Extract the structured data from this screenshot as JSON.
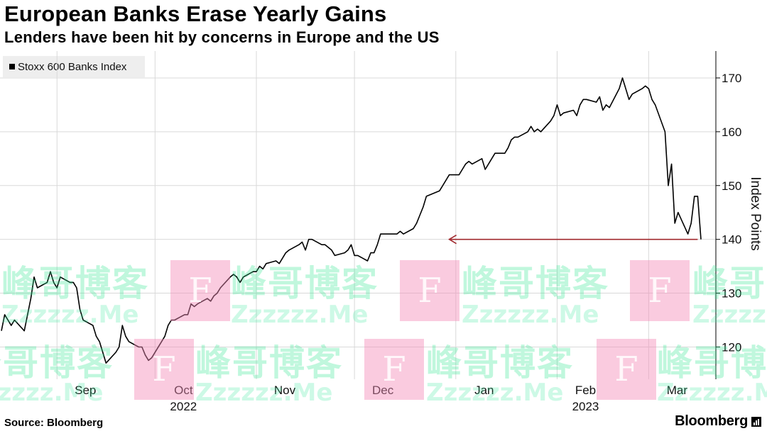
{
  "header": {
    "title": "European Banks Erase Yearly Gains",
    "subtitle": "Lenders have been hit by concerns in Europe and the US"
  },
  "legend": {
    "label": "Stoxx 600 Banks Index"
  },
  "footer": {
    "source": "Source: Bloomberg",
    "brand": "Bloomberg"
  },
  "watermark": {
    "cn": "峰哥博客",
    "en": "Zzzzzz.Me",
    "f": "F"
  },
  "colors": {
    "line": "#000000",
    "arrow": "#a0282d",
    "grid": "#d9d9d9"
  },
  "chart_data": {
    "type": "line",
    "title": "European Banks Erase Yearly Gains",
    "subtitle": "Lenders have been hit by concerns in Europe and the US",
    "ylabel": "Index Points",
    "ylim": [
      114,
      175
    ],
    "yticks": [
      120,
      130,
      140,
      150,
      160,
      170
    ],
    "xlabels": [
      {
        "label": "Sep",
        "date": "2022-09-01"
      },
      {
        "label": "Oct",
        "date": "2022-10-01",
        "year": "2022"
      },
      {
        "label": "Nov",
        "date": "2022-11-01"
      },
      {
        "label": "Dec",
        "date": "2022-12-01"
      },
      {
        "label": "Jan",
        "date": "2023-01-01"
      },
      {
        "label": "Feb",
        "date": "2023-02-01",
        "year": "2023"
      },
      {
        "label": "Mar",
        "date": "2023-03-01"
      }
    ],
    "grid": true,
    "legend_position": "top-left",
    "annotation": {
      "type": "arrow",
      "from_date": "2023-03-16",
      "to_date": "2022-12-30",
      "value": 140,
      "meaning": "back to start-of-year level"
    },
    "series": [
      {
        "name": "Stoxx 600 Banks Index",
        "points": [
          [
            "2022-08-15",
            123
          ],
          [
            "2022-08-16",
            126
          ],
          [
            "2022-08-17",
            125
          ],
          [
            "2022-08-18",
            124
          ],
          [
            "2022-08-19",
            125
          ],
          [
            "2022-08-22",
            123
          ],
          [
            "2022-08-23",
            126
          ],
          [
            "2022-08-24",
            129
          ],
          [
            "2022-08-25",
            133
          ],
          [
            "2022-08-26",
            131
          ],
          [
            "2022-08-29",
            132
          ],
          [
            "2022-08-30",
            134
          ],
          [
            "2022-08-31",
            132
          ],
          [
            "2022-09-01",
            131
          ],
          [
            "2022-09-02",
            133
          ],
          [
            "2022-09-05",
            132
          ],
          [
            "2022-09-06",
            132
          ],
          [
            "2022-09-07",
            131
          ],
          [
            "2022-09-08",
            127
          ],
          [
            "2022-09-09",
            125
          ],
          [
            "2022-09-12",
            124
          ],
          [
            "2022-09-13",
            122
          ],
          [
            "2022-09-14",
            121
          ],
          [
            "2022-09-15",
            119
          ],
          [
            "2022-09-16",
            117
          ],
          [
            "2022-09-19",
            119
          ],
          [
            "2022-09-20",
            120
          ],
          [
            "2022-09-21",
            124
          ],
          [
            "2022-09-22",
            122
          ],
          [
            "2022-09-23",
            121
          ],
          [
            "2022-09-26",
            120
          ],
          [
            "2022-09-27",
            120
          ],
          [
            "2022-09-28",
            118.5
          ],
          [
            "2022-09-29",
            117.5
          ],
          [
            "2022-09-30",
            118
          ],
          [
            "2022-10-03",
            121
          ],
          [
            "2022-10-04",
            122
          ],
          [
            "2022-10-05",
            124
          ],
          [
            "2022-10-06",
            125
          ],
          [
            "2022-10-07",
            125
          ],
          [
            "2022-10-10",
            126
          ],
          [
            "2022-10-11",
            126
          ],
          [
            "2022-10-12",
            128
          ],
          [
            "2022-10-13",
            127.5
          ],
          [
            "2022-10-14",
            128
          ],
          [
            "2022-10-17",
            129
          ],
          [
            "2022-10-18",
            128.5
          ],
          [
            "2022-10-19",
            129.5
          ],
          [
            "2022-10-20",
            130
          ],
          [
            "2022-10-21",
            131
          ],
          [
            "2022-10-24",
            133
          ],
          [
            "2022-10-25",
            133.5
          ],
          [
            "2022-10-26",
            133
          ],
          [
            "2022-10-27",
            132
          ],
          [
            "2022-10-28",
            133
          ],
          [
            "2022-10-31",
            134
          ],
          [
            "2022-11-01",
            134
          ],
          [
            "2022-11-02",
            135
          ],
          [
            "2022-11-03",
            134.5
          ],
          [
            "2022-11-04",
            135.5
          ],
          [
            "2022-11-07",
            136
          ],
          [
            "2022-11-08",
            135.5
          ],
          [
            "2022-11-09",
            136.5
          ],
          [
            "2022-11-10",
            137.5
          ],
          [
            "2022-11-11",
            138
          ],
          [
            "2022-11-14",
            139
          ],
          [
            "2022-11-15",
            139.5
          ],
          [
            "2022-11-16",
            138
          ],
          [
            "2022-11-17",
            140
          ],
          [
            "2022-11-18",
            140
          ],
          [
            "2022-11-21",
            139
          ],
          [
            "2022-11-22",
            139
          ],
          [
            "2022-11-23",
            138.5
          ],
          [
            "2022-11-24",
            138
          ],
          [
            "2022-11-25",
            137
          ],
          [
            "2022-11-28",
            137.5
          ],
          [
            "2022-11-29",
            138
          ],
          [
            "2022-11-30",
            139
          ],
          [
            "2022-12-01",
            137
          ],
          [
            "2022-12-02",
            137
          ],
          [
            "2022-12-05",
            136
          ],
          [
            "2022-12-06",
            137.5
          ],
          [
            "2022-12-07",
            137.5
          ],
          [
            "2022-12-08",
            139
          ],
          [
            "2022-12-09",
            141
          ],
          [
            "2022-12-12",
            141
          ],
          [
            "2022-12-13",
            141
          ],
          [
            "2022-12-14",
            141
          ],
          [
            "2022-12-15",
            141.5
          ],
          [
            "2022-12-16",
            141
          ],
          [
            "2022-12-19",
            142
          ],
          [
            "2022-12-20",
            143
          ],
          [
            "2022-12-21",
            144.5
          ],
          [
            "2022-12-22",
            146
          ],
          [
            "2022-12-23",
            148
          ],
          [
            "2022-12-27",
            149
          ],
          [
            "2022-12-28",
            150
          ],
          [
            "2022-12-29",
            151
          ],
          [
            "2022-12-30",
            152
          ],
          [
            "2023-01-02",
            152
          ],
          [
            "2023-01-03",
            153
          ],
          [
            "2023-01-04",
            154
          ],
          [
            "2023-01-05",
            154.5
          ],
          [
            "2023-01-06",
            154
          ],
          [
            "2023-01-09",
            155
          ],
          [
            "2023-01-10",
            153
          ],
          [
            "2023-01-11",
            154
          ],
          [
            "2023-01-12",
            155
          ],
          [
            "2023-01-13",
            156
          ],
          [
            "2023-01-16",
            156
          ],
          [
            "2023-01-17",
            157
          ],
          [
            "2023-01-18",
            158.5
          ],
          [
            "2023-01-19",
            159
          ],
          [
            "2023-01-20",
            159
          ],
          [
            "2023-01-23",
            160
          ],
          [
            "2023-01-24",
            161
          ],
          [
            "2023-01-25",
            160
          ],
          [
            "2023-01-26",
            160.5
          ],
          [
            "2023-01-27",
            160
          ],
          [
            "2023-01-30",
            162
          ],
          [
            "2023-01-31",
            163
          ],
          [
            "2023-02-01",
            165
          ],
          [
            "2023-02-02",
            163
          ],
          [
            "2023-02-03",
            163.5
          ],
          [
            "2023-02-06",
            164
          ],
          [
            "2023-02-07",
            163
          ],
          [
            "2023-02-08",
            165
          ],
          [
            "2023-02-09",
            166
          ],
          [
            "2023-02-10",
            166
          ],
          [
            "2023-02-13",
            165.5
          ],
          [
            "2023-02-14",
            166.5
          ],
          [
            "2023-02-15",
            164
          ],
          [
            "2023-02-16",
            165
          ],
          [
            "2023-02-17",
            164.5
          ],
          [
            "2023-02-20",
            168
          ],
          [
            "2023-02-21",
            170
          ],
          [
            "2023-02-22",
            168
          ],
          [
            "2023-02-23",
            166
          ],
          [
            "2023-02-24",
            167
          ],
          [
            "2023-02-27",
            168
          ],
          [
            "2023-02-28",
            168.5
          ],
          [
            "2023-03-01",
            168
          ],
          [
            "2023-03-02",
            166
          ],
          [
            "2023-03-03",
            165
          ],
          [
            "2023-03-06",
            160
          ],
          [
            "2023-03-07",
            150
          ],
          [
            "2023-03-08",
            154
          ],
          [
            "2023-03-09",
            143
          ],
          [
            "2023-03-10",
            145
          ],
          [
            "2023-03-13",
            141
          ],
          [
            "2023-03-14",
            143
          ],
          [
            "2023-03-15",
            148
          ],
          [
            "2023-03-16",
            148
          ],
          [
            "2023-03-17",
            140
          ]
        ]
      }
    ]
  }
}
